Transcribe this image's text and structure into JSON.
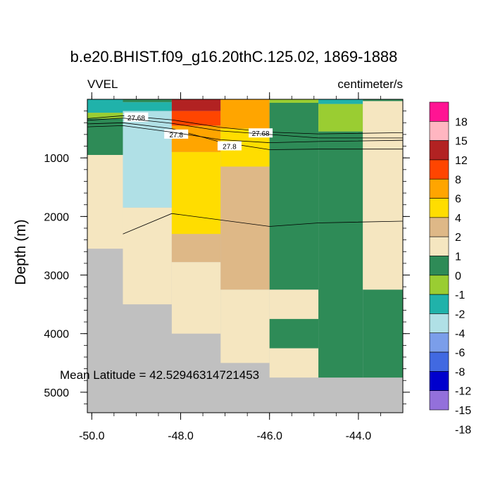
{
  "chart_data": {
    "type": "heatmap",
    "title": "b.e20.BHIST.f09_g16.20thC.125.02, 1869-1888",
    "left_label": "VVEL",
    "right_label": "centimeter/s",
    "ylabel": "Depth (m)",
    "xlabel": "",
    "xlim": [
      -50.1,
      -43.0
    ],
    "ylim": [
      5350,
      0
    ],
    "x_ticks": [
      {
        "value": -50.0,
        "label": "-50.0"
      },
      {
        "value": -48.0,
        "label": "-48.0"
      },
      {
        "value": -46.0,
        "label": "-46.0"
      },
      {
        "value": -44.0,
        "label": "-44.0"
      }
    ],
    "y_ticks": [
      {
        "value": 1000,
        "label": "1000"
      },
      {
        "value": 2000,
        "label": "2000"
      },
      {
        "value": 3000,
        "label": "3000"
      },
      {
        "value": 4000,
        "label": "4000"
      },
      {
        "value": 5000,
        "label": "5000"
      }
    ],
    "annotation": "Mean Latitude = 42.52946314721453",
    "colorbar": {
      "labels": [
        "18",
        "15",
        "12",
        "8",
        "6",
        "4",
        "2",
        "1",
        "0",
        "-1",
        "-2",
        "-4",
        "-6",
        "-8",
        "-12",
        "-15",
        "-18"
      ],
      "colors": [
        "#ff1493",
        "#ffb6c1",
        "#b22222",
        "#ff4500",
        "#ffa500",
        "#ffdd00",
        "#deb887",
        "#f5e6c0",
        "#2e8b57",
        "#9acd32",
        "#20b2aa",
        "#b0e0e6",
        "#7b9eea",
        "#4169e1",
        "#0000cd",
        "#9370db"
      ]
    },
    "background_color": "#c0c0c0",
    "columns": [
      {
        "x0": -50.1,
        "x1": -49.3,
        "segments": [
          [
            0,
            230,
            "#20b2aa"
          ],
          [
            230,
            330,
            "#9acd32"
          ],
          [
            330,
            950,
            "#2e8b57"
          ],
          [
            950,
            2550,
            "#f5e6c0"
          ]
        ]
      },
      {
        "x0": -49.3,
        "x1": -48.2,
        "segments": [
          [
            0,
            50,
            "#2e8b57"
          ],
          [
            50,
            200,
            "#20b2aa"
          ],
          [
            200,
            1850,
            "#b0e0e6"
          ],
          [
            1850,
            3500,
            "#f5e6c0"
          ]
        ]
      },
      {
        "x0": -48.2,
        "x1": -47.1,
        "segments": [
          [
            0,
            200,
            "#b22222"
          ],
          [
            200,
            450,
            "#ff4500"
          ],
          [
            450,
            900,
            "#ffa500"
          ],
          [
            900,
            2300,
            "#ffdd00"
          ],
          [
            2300,
            2780,
            "#deb887"
          ],
          [
            2780,
            4000,
            "#f5e6c0"
          ]
        ]
      },
      {
        "x0": -47.1,
        "x1": -46.0,
        "segments": [
          [
            0,
            500,
            "#ffa500"
          ],
          [
            500,
            1150,
            "#ffdd00"
          ],
          [
            1150,
            3250,
            "#deb887"
          ],
          [
            3250,
            4500,
            "#f5e6c0"
          ]
        ]
      },
      {
        "x0": -46.0,
        "x1": -44.9,
        "segments": [
          [
            0,
            60,
            "#9acd32"
          ],
          [
            60,
            3250,
            "#2e8b57"
          ],
          [
            3250,
            3750,
            "#f5e6c0"
          ],
          [
            3750,
            4250,
            "#2e8b57"
          ],
          [
            4250,
            4750,
            "#f5e6c0"
          ]
        ]
      },
      {
        "x0": -44.9,
        "x1": -43.9,
        "segments": [
          [
            0,
            80,
            "#20b2aa"
          ],
          [
            80,
            550,
            "#9acd32"
          ],
          [
            550,
            4750,
            "#2e8b57"
          ]
        ]
      },
      {
        "x0": -43.9,
        "x1": -43.0,
        "segments": [
          [
            0,
            30,
            "#2e8b57"
          ],
          [
            30,
            3250,
            "#f5e6c0"
          ],
          [
            3250,
            4750,
            "#2e8b57"
          ]
        ]
      }
    ],
    "contours": [
      {
        "level": "27.68",
        "points": [
          [
            -50.1,
            330
          ],
          [
            -49.3,
            280
          ],
          [
            -48.2,
            350
          ],
          [
            -47.1,
            480
          ],
          [
            -46.0,
            560
          ],
          [
            -44.9,
            590
          ],
          [
            -43.0,
            570
          ]
        ],
        "label_at": [
          [
            -49.0,
            310
          ],
          [
            -46.2,
            580
          ]
        ]
      },
      {
        "level": "27.68",
        "points": [
          [
            -50.1,
            360
          ],
          [
            -49.3,
            320
          ],
          [
            -48.2,
            410
          ],
          [
            -47.1,
            540
          ],
          [
            -46.0,
            600
          ],
          [
            -44.9,
            660
          ],
          [
            -43.0,
            660
          ]
        ],
        "label_at": []
      },
      {
        "level": "27.8",
        "points": [
          [
            -50.1,
            420
          ],
          [
            -49.3,
            400
          ],
          [
            -48.2,
            500
          ],
          [
            -47.1,
            730
          ],
          [
            -46.0,
            860
          ],
          [
            -44.9,
            850
          ],
          [
            -43.0,
            850
          ]
        ],
        "label_at": [
          [
            -48.1,
            600
          ],
          [
            -46.9,
            800
          ]
        ]
      },
      {
        "level": "27.8",
        "points": [
          [
            -50.1,
            470
          ],
          [
            -49.3,
            450
          ],
          [
            -48.2,
            560
          ],
          [
            -47.1,
            690
          ],
          [
            -46.0,
            740
          ],
          [
            -44.9,
            720
          ],
          [
            -43.0,
            700
          ]
        ],
        "label_at": []
      },
      {
        "level": "",
        "points": [
          [
            -49.3,
            2300
          ],
          [
            -48.2,
            1950
          ],
          [
            -46.0,
            2170
          ],
          [
            -44.9,
            2110
          ],
          [
            -43.0,
            2080
          ]
        ],
        "label_at": []
      }
    ]
  }
}
